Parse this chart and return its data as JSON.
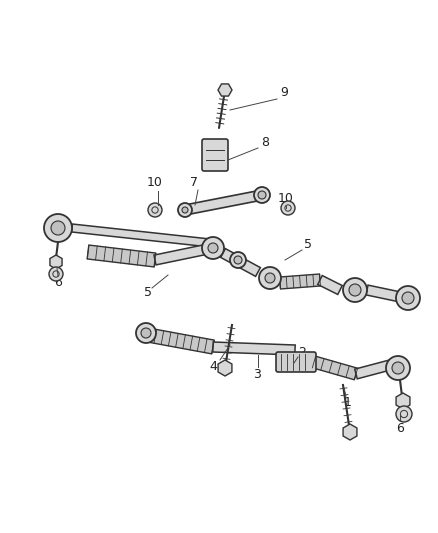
{
  "bg_color": "#ffffff",
  "lc": "#333333",
  "lw_main": 1.4,
  "lw_thin": 0.8,
  "fc_light": "#e8e8e8",
  "fc_mid": "#d0d0d0",
  "fc_dark": "#b8b8b8",
  "fig_width": 4.38,
  "fig_height": 5.33,
  "dpi": 100
}
